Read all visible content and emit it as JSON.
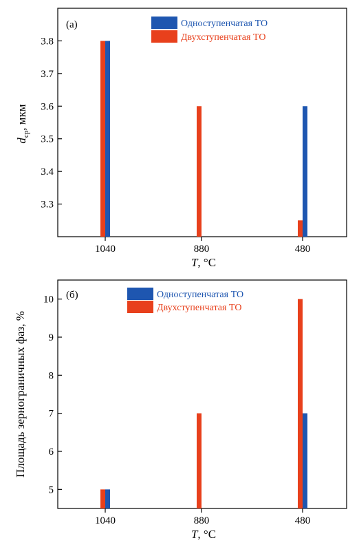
{
  "colors": {
    "single": "#1e56b0",
    "double": "#e8401c",
    "axis": "#000000"
  },
  "chart_data": [
    {
      "type": "bar",
      "panel_label": "(a)",
      "categories": [
        "1040",
        "880",
        "480"
      ],
      "xlabel": "T, °C",
      "ylabel": "d_ср, мкм",
      "ylabel_main": "d",
      "ylabel_sub": "ср",
      "ylabel_unit": ", мкм",
      "xlabel_main": "T",
      "xlabel_unit": ", °C",
      "ylim": [
        3.2,
        3.9
      ],
      "yticks": [
        "3.3",
        "3.4",
        "3.5",
        "3.6",
        "3.7",
        "3.8"
      ],
      "legend_position": "top-right",
      "series": [
        {
          "name": "Одноступенчатая ТО",
          "color": "#1e56b0",
          "values": [
            3.8,
            null,
            3.6
          ]
        },
        {
          "name": "Двухступенчатая ТО",
          "color": "#e8401c",
          "values": [
            3.8,
            3.6,
            3.25
          ]
        }
      ]
    },
    {
      "type": "bar",
      "panel_label": "(б)",
      "categories": [
        "1040",
        "880",
        "480"
      ],
      "xlabel": "T, °C",
      "ylabel": "Площадь зернограничных фаз, %",
      "xlabel_main": "T",
      "xlabel_unit": ", °C",
      "ylim": [
        4.5,
        10.5
      ],
      "yticks": [
        "5",
        "6",
        "7",
        "8",
        "9",
        "10"
      ],
      "legend_position": "top-right",
      "series": [
        {
          "name": "Одноступенчатая ТО",
          "color": "#1e56b0",
          "values": [
            5,
            null,
            7
          ]
        },
        {
          "name": "Двухступенчатая ТО",
          "color": "#e8401c",
          "values": [
            5,
            7,
            10
          ]
        }
      ]
    }
  ]
}
